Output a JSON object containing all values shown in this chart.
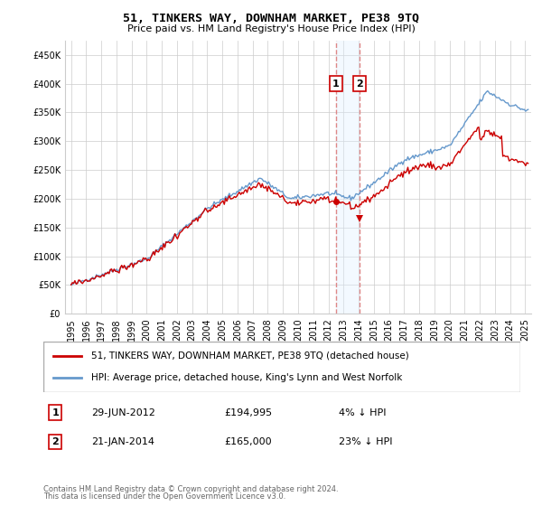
{
  "title": "51, TINKERS WAY, DOWNHAM MARKET, PE38 9TQ",
  "subtitle": "Price paid vs. HM Land Registry's House Price Index (HPI)",
  "legend_line1": "51, TINKERS WAY, DOWNHAM MARKET, PE38 9TQ (detached house)",
  "legend_line2": "HPI: Average price, detached house, King's Lynn and West Norfolk",
  "annotation1_date": "29-JUN-2012",
  "annotation1_price": "£194,995",
  "annotation1_hpi": "4% ↓ HPI",
  "annotation2_date": "21-JAN-2014",
  "annotation2_price": "£165,000",
  "annotation2_hpi": "23% ↓ HPI",
  "footnote1": "Contains HM Land Registry data © Crown copyright and database right 2024.",
  "footnote2": "This data is licensed under the Open Government Licence v3.0.",
  "red_color": "#cc0000",
  "blue_color": "#6699cc",
  "annotation_box_color": "#cc0000",
  "vline_color": "#dd8888",
  "shade_color": "#ddeeff",
  "grid_color": "#cccccc",
  "ylim": [
    0,
    475000
  ],
  "yticks": [
    0,
    50000,
    100000,
    150000,
    200000,
    250000,
    300000,
    350000,
    400000,
    450000
  ],
  "year_start": 1995,
  "year_end": 2025,
  "purchase1_year": 2012.49,
  "purchase2_year": 2014.05,
  "purchase1_price": 194995,
  "purchase2_price": 165000
}
